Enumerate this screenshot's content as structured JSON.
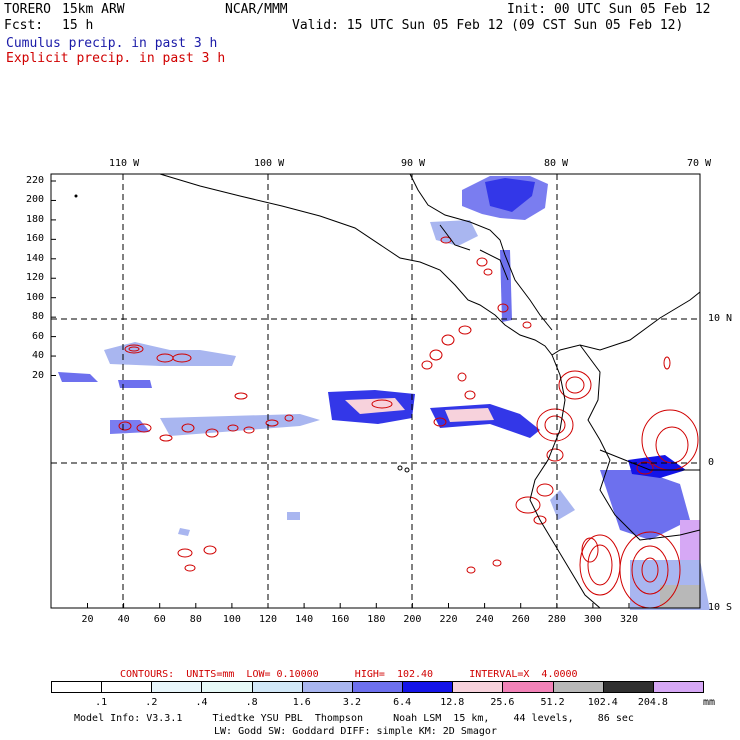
{
  "header": {
    "model": "TORERO",
    "resolution": "15km ARW",
    "org": "NCAR/MMM",
    "init": "Init: 00 UTC Sun 05 Feb 12",
    "fcst_label": "Fcst:",
    "fcst_value": "15 h",
    "valid": "Valid: 15 UTC Sun 05 Feb 12 (09 CST Sun 05 Feb 12)"
  },
  "legend": {
    "cumulus": "Cumulus precip. in past 3 h",
    "explicit": "Explicit precip. in past 3 h"
  },
  "map": {
    "lon_labels": [
      "110 W",
      "100 W",
      "90 W",
      "80 W",
      "70 W"
    ],
    "lat_labels": [
      "10 N",
      "0",
      "10 S"
    ],
    "y_ticks": [
      "220",
      "200",
      "180",
      "160",
      "140",
      "120",
      "100",
      "80",
      "60",
      "40",
      "20"
    ],
    "x_ticks": [
      "20",
      "40",
      "60",
      "80",
      "100",
      "120",
      "140",
      "160",
      "180",
      "200",
      "220",
      "240",
      "260",
      "280",
      "300",
      "320"
    ]
  },
  "contour_info": "CONTOURS:  UNITS=mm  LOW= 0.10000      HIGH=  102.40      INTERVAL=X  4.0000",
  "colorbar": {
    "labels": [
      ".1",
      ".2",
      ".4",
      ".8",
      "1.6",
      "3.2",
      "6.4",
      "12.8",
      "25.6",
      "51.2",
      "102.4",
      "204.8"
    ],
    "unit": "mm",
    "colors": [
      "#ffffff",
      "#ffffff",
      "#e8f6fb",
      "#e6f9f7",
      "#d2e8f8",
      "#a9b6f0",
      "#6d70ee",
      "#1414e8",
      "#f7d2dc",
      "#f283b8",
      "#b8b8b8",
      "#303030",
      "#d6a8f5"
    ]
  },
  "footer": {
    "line1": "Model Info: V3.3.1     Tiedtke YSU PBL  Thompson     Noah LSM  15 km,    44 levels,    86 sec",
    "line2": "LW: Godd SW: Goddard DIFF: simple KM: 2D Smagor"
  }
}
